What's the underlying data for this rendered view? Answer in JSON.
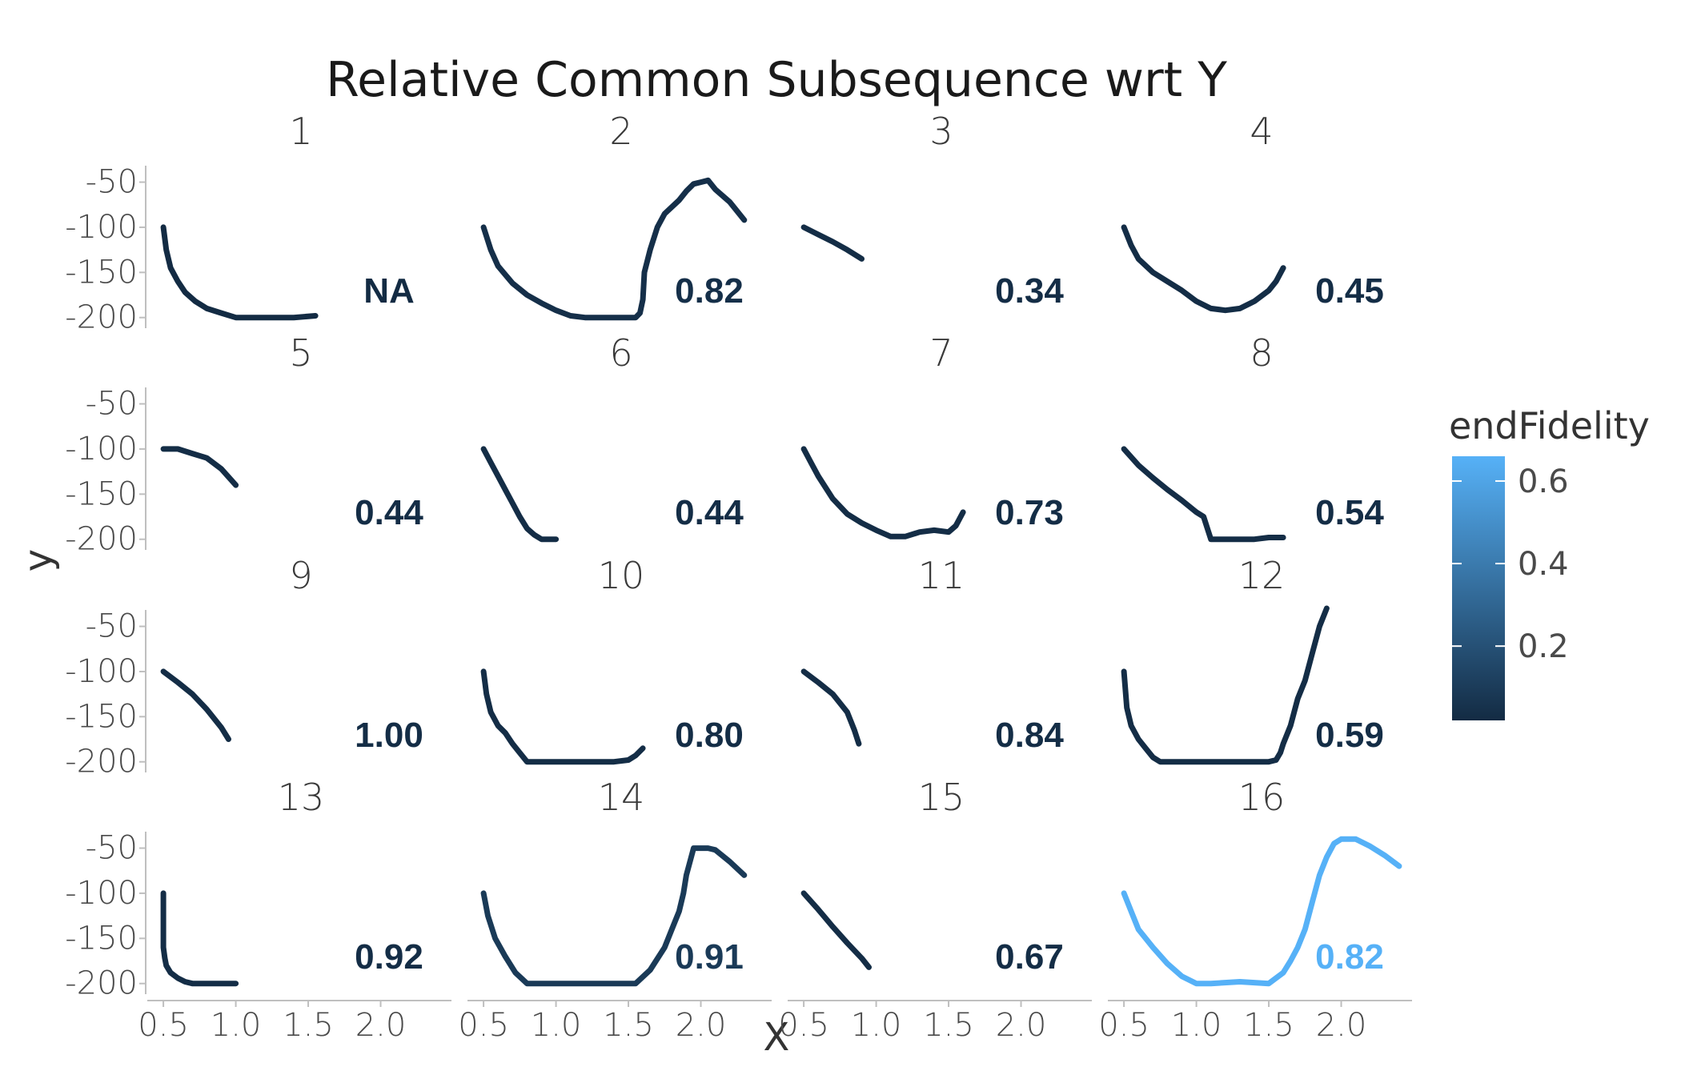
{
  "chart_data": {
    "type": "line",
    "title": "Relative Common Subsequence wrt Y",
    "xlabel": "X",
    "ylabel": "y",
    "xlim": [
      0.4,
      2.5
    ],
    "ylim": [
      -210,
      -30
    ],
    "x_ticks": [
      "0.5",
      "1.0",
      "1.5",
      "2.0"
    ],
    "y_ticks": [
      "-50",
      "-100",
      "-150",
      "-200"
    ],
    "x_tick_values": [
      0.5,
      1.0,
      1.5,
      2.0
    ],
    "y_tick_values": [
      -50,
      -100,
      -150,
      -200
    ],
    "grid": false,
    "legend": {
      "title": "endFidelity",
      "position": "right",
      "ticks": [
        "0.2",
        "0.4",
        "0.6"
      ],
      "tick_values": [
        0.2,
        0.4,
        0.6
      ],
      "range": [
        0.02,
        0.66
      ],
      "color_low": "#132b43",
      "color_high": "#56b1f7"
    },
    "panels": [
      {
        "id": "1",
        "label": "NA",
        "end_fidelity": 0.02,
        "x": [
          0.5,
          0.52,
          0.55,
          0.6,
          0.65,
          0.72,
          0.8,
          0.9,
          1.0,
          1.2,
          1.4,
          1.55
        ],
        "y": [
          -100,
          -125,
          -145,
          -160,
          -172,
          -182,
          -190,
          -195,
          -200,
          -200,
          -200,
          -198
        ]
      },
      {
        "id": "2",
        "label": "0.82",
        "end_fidelity": 0.04,
        "x": [
          0.5,
          0.55,
          0.6,
          0.7,
          0.8,
          0.9,
          1.0,
          1.1,
          1.2,
          1.3,
          1.4,
          1.5,
          1.55,
          1.58,
          1.6,
          1.61,
          1.65,
          1.7,
          1.75,
          1.85,
          1.9,
          1.95,
          2.0,
          2.05,
          2.1,
          2.2,
          2.3
        ],
        "y": [
          -100,
          -125,
          -143,
          -162,
          -175,
          -184,
          -192,
          -198,
          -200,
          -200,
          -200,
          -200,
          -200,
          -195,
          -180,
          -150,
          -125,
          -100,
          -85,
          -70,
          -60,
          -52,
          -50,
          -48,
          -58,
          -72,
          -92
        ]
      },
      {
        "id": "3",
        "label": "0.34",
        "end_fidelity": 0.03,
        "x": [
          0.5,
          0.6,
          0.7,
          0.8,
          0.9
        ],
        "y": [
          -100,
          -108,
          -116,
          -125,
          -135
        ]
      },
      {
        "id": "4",
        "label": "0.45",
        "end_fidelity": 0.03,
        "x": [
          0.5,
          0.55,
          0.6,
          0.7,
          0.8,
          0.9,
          1.0,
          1.1,
          1.2,
          1.3,
          1.4,
          1.5,
          1.55,
          1.6
        ],
        "y": [
          -100,
          -120,
          -135,
          -150,
          -160,
          -170,
          -182,
          -190,
          -192,
          -190,
          -182,
          -170,
          -160,
          -145
        ]
      },
      {
        "id": "5",
        "label": "0.44",
        "end_fidelity": 0.03,
        "x": [
          0.5,
          0.6,
          0.7,
          0.8,
          0.9,
          1.0
        ],
        "y": [
          -100,
          -100,
          -105,
          -110,
          -122,
          -140
        ]
      },
      {
        "id": "6",
        "label": "0.44",
        "end_fidelity": 0.03,
        "x": [
          0.5,
          0.55,
          0.6,
          0.65,
          0.7,
          0.75,
          0.8,
          0.85,
          0.9,
          1.0
        ],
        "y": [
          -100,
          -115,
          -130,
          -145,
          -160,
          -175,
          -188,
          -195,
          -200,
          -200
        ]
      },
      {
        "id": "7",
        "label": "0.73",
        "end_fidelity": 0.03,
        "x": [
          0.5,
          0.55,
          0.6,
          0.7,
          0.8,
          0.9,
          1.0,
          1.1,
          1.2,
          1.3,
          1.4,
          1.5,
          1.55,
          1.6
        ],
        "y": [
          -100,
          -115,
          -130,
          -155,
          -172,
          -182,
          -190,
          -197,
          -197,
          -192,
          -190,
          -192,
          -185,
          -170
        ]
      },
      {
        "id": "8",
        "label": "0.54",
        "end_fidelity": 0.03,
        "x": [
          0.5,
          0.6,
          0.7,
          0.8,
          0.9,
          1.0,
          1.05,
          1.1,
          1.2,
          1.3,
          1.4,
          1.5,
          1.6
        ],
        "y": [
          -100,
          -118,
          -132,
          -145,
          -157,
          -170,
          -175,
          -200,
          -200,
          -200,
          -200,
          -198,
          -198
        ]
      },
      {
        "id": "9",
        "label": "1.00",
        "end_fidelity": 0.03,
        "x": [
          0.5,
          0.6,
          0.7,
          0.8,
          0.9,
          0.95
        ],
        "y": [
          -100,
          -112,
          -125,
          -142,
          -162,
          -175
        ]
      },
      {
        "id": "10",
        "label": "0.80",
        "end_fidelity": 0.03,
        "x": [
          0.5,
          0.52,
          0.55,
          0.6,
          0.65,
          0.7,
          0.75,
          0.8,
          1.0,
          1.2,
          1.4,
          1.5,
          1.55,
          1.6
        ],
        "y": [
          -100,
          -125,
          -145,
          -160,
          -168,
          -180,
          -190,
          -200,
          -200,
          -200,
          -200,
          -198,
          -193,
          -185
        ]
      },
      {
        "id": "11",
        "label": "0.84",
        "end_fidelity": 0.03,
        "x": [
          0.5,
          0.6,
          0.7,
          0.8,
          0.85,
          0.88
        ],
        "y": [
          -100,
          -112,
          -125,
          -145,
          -165,
          -180
        ]
      },
      {
        "id": "12",
        "label": "0.59",
        "end_fidelity": 0.03,
        "x": [
          0.5,
          0.52,
          0.55,
          0.6,
          0.65,
          0.7,
          0.75,
          0.8,
          1.0,
          1.2,
          1.4,
          1.5,
          1.55,
          1.58,
          1.6,
          1.65,
          1.7,
          1.75,
          1.8,
          1.85,
          1.9
        ],
        "y": [
          -100,
          -140,
          -160,
          -175,
          -185,
          -195,
          -200,
          -200,
          -200,
          -200,
          -200,
          -200,
          -198,
          -190,
          -180,
          -160,
          -130,
          -110,
          -80,
          -50,
          -30
        ]
      },
      {
        "id": "13",
        "label": "0.92",
        "end_fidelity": 0.03,
        "x": [
          0.5,
          0.5,
          0.5,
          0.51,
          0.52,
          0.55,
          0.6,
          0.65,
          0.7,
          0.8,
          0.9,
          1.0
        ],
        "y": [
          -100,
          -130,
          -160,
          -172,
          -180,
          -188,
          -194,
          -198,
          -200,
          -200,
          -200,
          -200
        ]
      },
      {
        "id": "14",
        "label": "0.91",
        "end_fidelity": 0.09,
        "x": [
          0.5,
          0.53,
          0.58,
          0.65,
          0.72,
          0.8,
          1.0,
          1.2,
          1.4,
          1.55,
          1.65,
          1.75,
          1.8,
          1.85,
          1.88,
          1.9,
          1.95,
          2.05,
          2.1,
          2.2,
          2.3
        ],
        "y": [
          -100,
          -125,
          -150,
          -170,
          -188,
          -200,
          -200,
          -200,
          -200,
          -200,
          -185,
          -160,
          -140,
          -120,
          -100,
          -80,
          -50,
          -50,
          -52,
          -65,
          -80
        ]
      },
      {
        "id": "15",
        "label": "0.67",
        "end_fidelity": 0.03,
        "x": [
          0.5,
          0.6,
          0.7,
          0.8,
          0.9,
          0.95
        ],
        "y": [
          -100,
          -118,
          -137,
          -155,
          -172,
          -182
        ]
      },
      {
        "id": "16",
        "label": "0.82",
        "end_fidelity": 0.66,
        "x": [
          0.5,
          0.55,
          0.6,
          0.7,
          0.8,
          0.9,
          1.0,
          1.1,
          1.3,
          1.5,
          1.6,
          1.65,
          1.7,
          1.75,
          1.8,
          1.85,
          1.9,
          1.95,
          2.0,
          2.1,
          2.2,
          2.3,
          2.4
        ],
        "y": [
          -100,
          -120,
          -140,
          -160,
          -178,
          -192,
          -200,
          -200,
          -198,
          -200,
          -188,
          -175,
          -160,
          -140,
          -110,
          -80,
          -60,
          -45,
          -40,
          -40,
          -48,
          -58,
          -70
        ]
      }
    ]
  }
}
